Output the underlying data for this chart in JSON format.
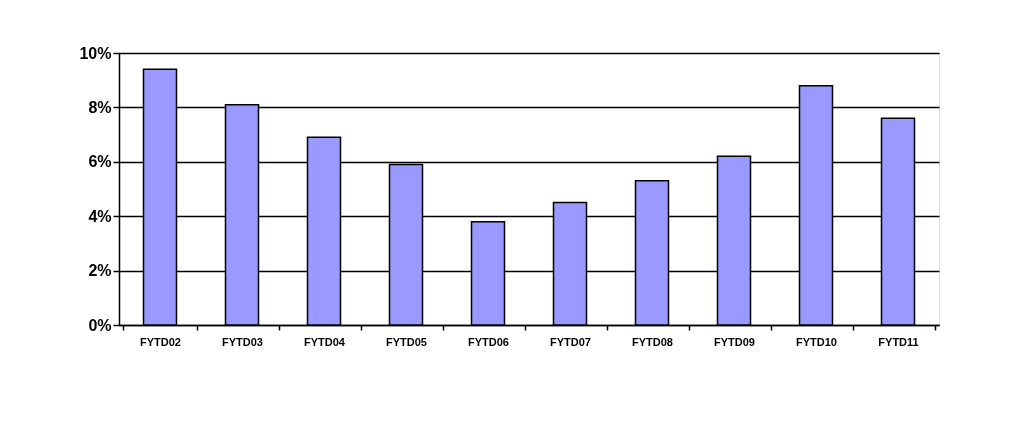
{
  "chart_data": {
    "type": "bar",
    "categories": [
      "FYTD02",
      "FYTD03",
      "FYTD04",
      "FYTD05",
      "FYTD06",
      "FYTD07",
      "FYTD08",
      "FYTD09",
      "FYTD10",
      "FYTD11"
    ],
    "values": [
      9.4,
      8.1,
      6.9,
      5.9,
      3.8,
      4.5,
      5.3,
      6.2,
      8.8,
      7.6
    ],
    "color": "#9999ff",
    "ylim": [
      0,
      10
    ],
    "yticks": [
      {
        "value": 0,
        "label": "0%"
      },
      {
        "value": 2,
        "label": "2%"
      },
      {
        "value": 4,
        "label": "4%"
      },
      {
        "value": 6,
        "label": "6%"
      },
      {
        "value": 8,
        "label": "8%"
      },
      {
        "value": 10,
        "label": "10%"
      }
    ],
    "grid": "y"
  }
}
